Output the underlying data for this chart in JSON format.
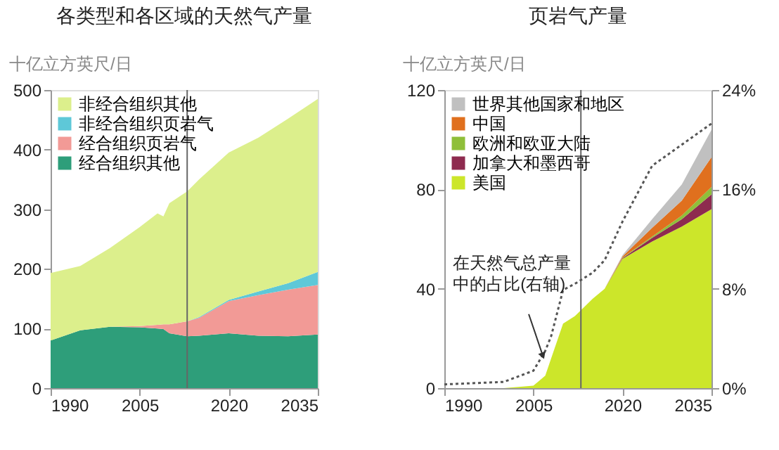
{
  "chart_data": [
    {
      "type": "area",
      "title": "各类型和各区域的天然气产量",
      "ylabel": "十亿立方英尺/日",
      "stacked": true,
      "legend": "top left",
      "x": [
        1990,
        1995,
        2000,
        2005,
        2008,
        2009,
        2010,
        2013,
        2015,
        2020,
        2025,
        2030,
        2035
      ],
      "series": [
        {
          "name": "经合组织其他",
          "color": "#2e9e7a",
          "values": [
            80,
            97,
            103,
            102,
            100,
            99,
            92,
            87,
            88,
            92,
            88,
            87,
            90
          ]
        },
        {
          "name": "经合组织页岩气",
          "color": "#f29a96",
          "values": [
            0,
            0,
            0,
            2,
            6,
            8,
            15,
            25,
            30,
            54,
            68,
            78,
            83
          ]
        },
        {
          "name": "非经合组织页岩气",
          "color": "#5ec8d8",
          "values": [
            0,
            0,
            0,
            0,
            0,
            0,
            0,
            0,
            1,
            2,
            6,
            11,
            22
          ]
        },
        {
          "name": "非经合组织其他",
          "color": "#dcef8c",
          "values": [
            113,
            108,
            132,
            166,
            187,
            181,
            203,
            218,
            231,
            247,
            258,
            276,
            290
          ]
        }
      ],
      "xlim": [
        1990,
        2035
      ],
      "xticks": [
        1990,
        2005,
        2020,
        2035
      ],
      "ylim": [
        0,
        500
      ],
      "yticks": [
        0,
        100,
        200,
        300,
        400,
        500
      ],
      "ref_lines": [
        {
          "axis": "x",
          "value": 2013,
          "color": "#666666"
        }
      ]
    },
    {
      "type": "area",
      "title": "页岩气产量",
      "ylabel": "十亿立方英尺/日",
      "stacked": true,
      "legend": "top left",
      "x": [
        1990,
        2000,
        2005,
        2007,
        2008,
        2010,
        2012,
        2015,
        2017,
        2020,
        2025,
        2030,
        2035
      ],
      "series": [
        {
          "name": "美国",
          "color": "#cce62a",
          "values": [
            0,
            0,
            1,
            5,
            12,
            26,
            29,
            36,
            40,
            52,
            59,
            65,
            72
          ]
        },
        {
          "name": "加拿大和墨西哥",
          "color": "#8e2b4f",
          "values": [
            0,
            0,
            0,
            0,
            0,
            0,
            0,
            0,
            0,
            0.3,
            1.5,
            3,
            6
          ]
        },
        {
          "name": "欧洲和欧亚大陆",
          "color": "#8fbf3a",
          "values": [
            0,
            0,
            0,
            0,
            0,
            0,
            0,
            0,
            0,
            0.2,
            0.5,
            1.5,
            3
          ]
        },
        {
          "name": "中国",
          "color": "#e0701e",
          "values": [
            0,
            0,
            0,
            0,
            0,
            0,
            0,
            0,
            0,
            0.5,
            3.5,
            6,
            12
          ]
        },
        {
          "name": "世界其他国家和地区",
          "color": "#c0c0c0",
          "values": [
            0,
            0,
            0,
            0,
            0,
            0,
            0,
            0,
            0,
            0.5,
            3.5,
            6.5,
            11
          ]
        },
        {
          "type": "line",
          "axis": "y2",
          "color": "#555555",
          "line_style": "dotted",
          "marker": "none",
          "values": [
            0.3,
            0.5,
            1.4,
            3,
            4.2,
            7.9,
            8.4,
            9.3,
            10.3,
            13.4,
            17.9,
            19.6,
            21.3
          ]
        }
      ],
      "xlim": [
        1990,
        2035
      ],
      "xticks": [
        1990,
        2005,
        2020,
        2035
      ],
      "ylim": [
        0,
        120
      ],
      "yticks": [
        0,
        40,
        80,
        120
      ],
      "y2lim": [
        0,
        24
      ],
      "y2ticks": [
        {
          "value": 0,
          "label": "0%"
        },
        {
          "value": 8,
          "label": "8%"
        },
        {
          "value": 16,
          "label": "16%"
        },
        {
          "value": 24,
          "label": "24%"
        }
      ],
      "ref_lines": [
        {
          "axis": "x",
          "value": 2013,
          "color": "#666666"
        }
      ],
      "annotations": [
        {
          "text": "在天然气总产量中的占比(右轴)",
          "x": 2006.6,
          "y": 13
        }
      ]
    }
  ]
}
